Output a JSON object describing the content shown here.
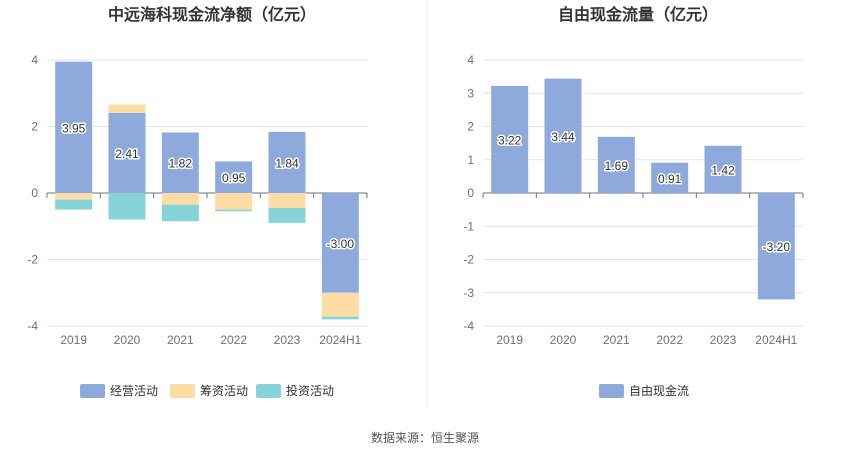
{
  "source_note": "数据来源：恒生聚源",
  "colors": {
    "operating": "#8eaadc",
    "financing": "#fddca6",
    "investing": "#86d4d8",
    "fcf": "#8eaadc",
    "grid": "#e6e6e6",
    "axis": "#6e7079",
    "label_text": "#333333",
    "divider": "#eeeeee"
  },
  "chart_data": [
    {
      "type": "bar",
      "stacked": true,
      "title": "中远海科现金流净额（亿元）",
      "categories": [
        "2019",
        "2020",
        "2021",
        "2022",
        "2023",
        "2024H1"
      ],
      "ylim": [
        -4,
        4
      ],
      "yticks": [
        "4",
        "2",
        "0",
        "-2",
        "-4"
      ],
      "ytick_values": [
        4,
        2,
        0,
        -2,
        -4
      ],
      "grid": true,
      "legend_position": "bottom",
      "series": [
        {
          "name": "经营活动",
          "color_key": "operating",
          "values": [
            3.95,
            2.41,
            1.82,
            0.95,
            1.84,
            -3.0
          ],
          "labels": [
            "3.95",
            "2.41",
            "1.82",
            "0.95",
            "1.84",
            "-3.00"
          ]
        },
        {
          "name": "筹资活动",
          "color_key": "financing",
          "values": [
            -0.2,
            0.25,
            -0.35,
            -0.5,
            -0.45,
            -0.72
          ]
        },
        {
          "name": "投资活动",
          "color_key": "investing",
          "values": [
            -0.3,
            -0.8,
            -0.5,
            -0.05,
            -0.45,
            -0.08
          ]
        }
      ]
    },
    {
      "type": "bar",
      "title": "自由现金流量（亿元）",
      "categories": [
        "2019",
        "2020",
        "2021",
        "2022",
        "2023",
        "2024H1"
      ],
      "ylim": [
        -4,
        4
      ],
      "yticks": [
        "4",
        "3",
        "2",
        "1",
        "0",
        "-1",
        "-2",
        "-3",
        "-4"
      ],
      "ytick_values": [
        4,
        3,
        2,
        1,
        0,
        -1,
        -2,
        -3,
        -4
      ],
      "grid": true,
      "legend_position": "bottom",
      "series": [
        {
          "name": "自由现金流",
          "color_key": "fcf",
          "values": [
            3.22,
            3.44,
            1.69,
            0.91,
            1.42,
            -3.2
          ],
          "labels": [
            "3.22",
            "3.44",
            "1.69",
            "0.91",
            "1.42",
            "-3.20"
          ]
        }
      ]
    }
  ]
}
